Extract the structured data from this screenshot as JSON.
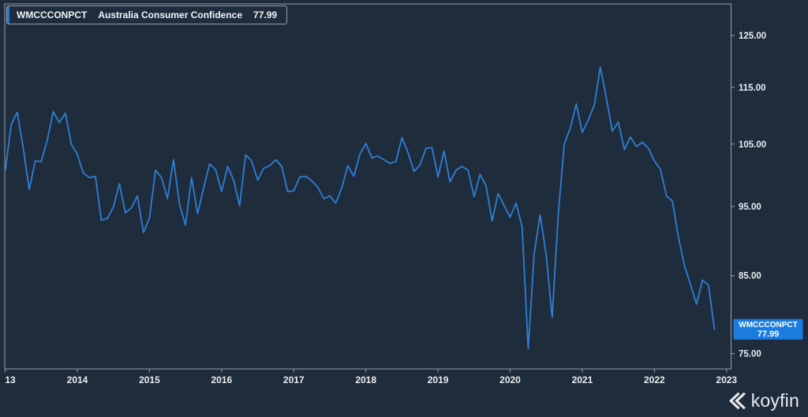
{
  "header": {
    "ticker": "WMCCCONPCT",
    "name": "Australia Consumer Confidence",
    "last_value": "77.99"
  },
  "badge": {
    "ticker": "WMCCCONPCT",
    "value": "77.99"
  },
  "watermark": {
    "brand": "koyfin"
  },
  "colors": {
    "background": "#1f2c3c",
    "line": "#2e7fd6",
    "accent": "#1b7ce0",
    "axis": "#97a1ab",
    "label": "#e9edf0",
    "badge_text": "#ffffff"
  },
  "chart_data": {
    "type": "line",
    "title": "WMCCCONPCT Australia Consumer Confidence",
    "frequency": "monthly",
    "x_start": "2013-01",
    "x_end": "2022-11",
    "series": [
      {
        "name": "WMCCCONPCT",
        "values": [
          100.6,
          108.3,
          110.5,
          104.3,
          97.6,
          102.2,
          102.1,
          105.7,
          110.6,
          108.7,
          110.3,
          105.0,
          103.3,
          100.2,
          99.5,
          99.7,
          92.9,
          93.2,
          94.9,
          98.5,
          94.0,
          94.8,
          96.6,
          91.1,
          93.2,
          100.7,
          99.5,
          96.2,
          102.4,
          95.3,
          92.2,
          99.5,
          93.9,
          97.8,
          101.7,
          100.8,
          97.3,
          101.3,
          99.1,
          95.1,
          103.2,
          102.2,
          99.1,
          101.0,
          101.4,
          102.4,
          101.3,
          97.3,
          97.4,
          99.6,
          99.7,
          99.0,
          98.0,
          96.2,
          96.6,
          95.5,
          97.9,
          101.4,
          99.7,
          103.3,
          105.1,
          102.7,
          103.0,
          102.4,
          101.8,
          102.1,
          106.1,
          103.6,
          100.5,
          101.5,
          104.3,
          104.4,
          99.6,
          103.8,
          98.8,
          100.7,
          101.3,
          100.7,
          96.5,
          100.0,
          98.2,
          92.8,
          97.0,
          95.1,
          93.4,
          95.5,
          91.9,
          75.6,
          88.1,
          93.7,
          87.9,
          79.5,
          93.8,
          105.0,
          107.7,
          112.0,
          107.0,
          109.1,
          111.8,
          118.8,
          113.1,
          107.2,
          108.8,
          104.1,
          106.2,
          104.6,
          105.3,
          104.3,
          102.2,
          100.8,
          96.6,
          95.8,
          90.4,
          86.4,
          83.8,
          81.2,
          84.4,
          83.7,
          77.99
        ]
      }
    ],
    "last_value": 77.99,
    "x_years": [
      2013,
      2014,
      2015,
      2016,
      2017,
      2018,
      2019,
      2020,
      2021,
      2022,
      2023
    ],
    "x_tick_labels": [
      "13",
      "2014",
      "2015",
      "2016",
      "2017",
      "2018",
      "2019",
      "2020",
      "2021",
      "2022",
      "2023"
    ],
    "y_ticks": [
      125,
      115,
      105,
      95,
      85,
      75
    ],
    "y_tick_labels": [
      "125.00",
      "115.00",
      "105.00",
      "95.00",
      "85.00",
      "75.00"
    ],
    "y_scale": "log",
    "ylim": [
      74,
      128
    ],
    "grid": false,
    "legend_position": "top-left"
  }
}
